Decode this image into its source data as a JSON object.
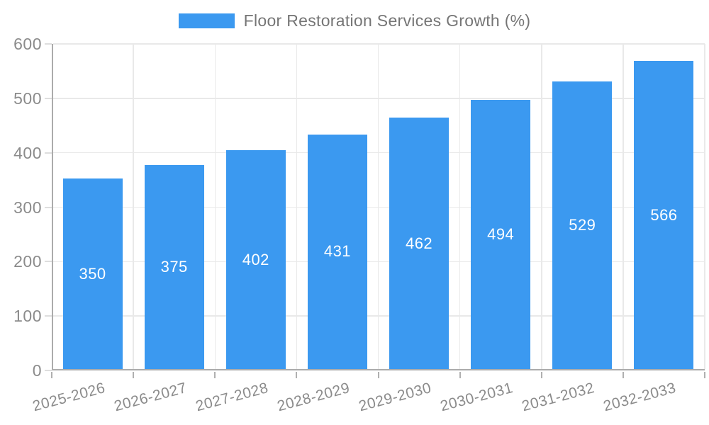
{
  "legend": {
    "label": "Floor Restoration Services Growth (%)"
  },
  "colors": {
    "bar": "#3b99f0",
    "axis": "#ababab",
    "grid": "#e9e9e9",
    "tick_text": "#8b8b8b",
    "legend_text": "#757575",
    "bar_label_text": "#ffffff"
  },
  "chart_data": {
    "type": "bar",
    "title": "Floor Restoration Services Growth (%)",
    "categories": [
      "2025-2026",
      "2026-2027",
      "2027-2028",
      "2028-2029",
      "2029-2030",
      "2030-2031",
      "2031-2032",
      "2032-2033"
    ],
    "values": [
      350,
      375,
      402,
      431,
      462,
      494,
      529,
      566
    ],
    "xlabel": "",
    "ylabel": "",
    "ylim": [
      0,
      600
    ],
    "yticks": [
      0,
      100,
      200,
      300,
      400,
      500,
      600
    ],
    "grid": true,
    "legend_position": "top-center",
    "bar_labels": "inside-middle",
    "x_label_rotation_deg": -15
  }
}
